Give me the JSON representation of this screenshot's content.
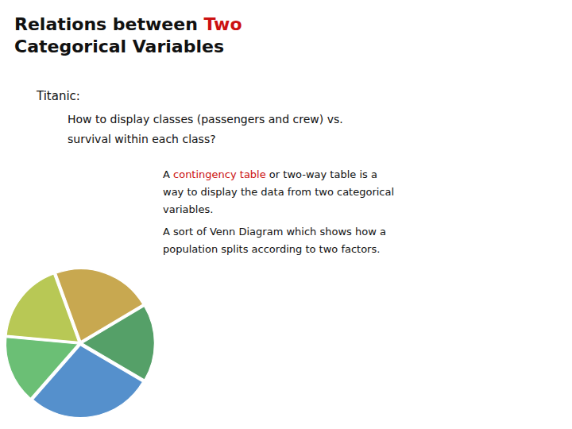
{
  "chart_data": {
    "type": "pie",
    "title": [
      [
        {
          "text": "Relations between ",
          "color": "#111111"
        },
        {
          "text": "Two",
          "color": "#CC1111"
        }
      ],
      [
        {
          "text": "Categorical Variables",
          "color": "#111111"
        }
      ]
    ],
    "subtitle": "Titanic:",
    "annotations": [
      [
        {
          "text": "How to display classes (passengers and crew) vs.",
          "color": "#111111"
        }
      ],
      [
        {
          "text": "survival within each class?",
          "color": "#111111"
        }
      ],
      [
        {
          "text": "A ",
          "color": "#111111"
        },
        {
          "text": "contingency table",
          "color": "#CC1111"
        },
        {
          "text": " or two-way table is a",
          "color": "#111111"
        }
      ],
      [
        {
          "text": "way to display the data from two categorical",
          "color": "#111111"
        }
      ],
      [
        {
          "text": "variables.",
          "color": "#111111"
        }
      ],
      [
        {
          "text": "A sort of Venn Diagram which shows how a",
          "color": "#111111"
        }
      ],
      [
        {
          "text": "population splits according to two factors.",
          "color": "#111111"
        }
      ]
    ],
    "values": [
      22,
      18,
      15,
      28,
      17
    ],
    "colors": [
      "#C8A850",
      "#B8C855",
      "#6BBF75",
      "#5590CC",
      "#55A068"
    ]
  }
}
